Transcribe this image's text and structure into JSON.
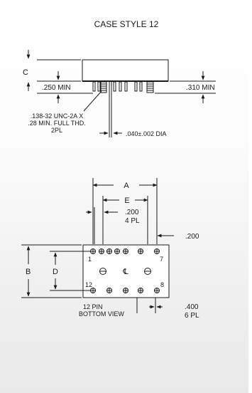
{
  "title": "CASE STYLE 12",
  "side_view": {
    "dim_c": "C",
    "dim_250": ".250 MIN",
    "dim_310": ".310 MIN",
    "thread_line1": ".138-32 UNC-2A X",
    "thread_line2": ".28 MIN. FULL THD.",
    "thread_line3": "2PL",
    "pin_dia": ".040±.002 DIA"
  },
  "bottom_view": {
    "dim_a": "A",
    "dim_e": "E",
    "dim_200_4pl_line1": ".200",
    "dim_200_4pl_line2": "4 PL",
    "dim_200": ".200",
    "dim_b": "B",
    "dim_d": "D",
    "pin1": "1",
    "pin7": "7",
    "pin12": "12",
    "pin8": "8",
    "centerline": "℄",
    "caption_line1": "12 PIN",
    "caption_line2": "BOTTOM VIEW",
    "dim_400_line1": ".400",
    "dim_400_line2": "6 PL"
  }
}
